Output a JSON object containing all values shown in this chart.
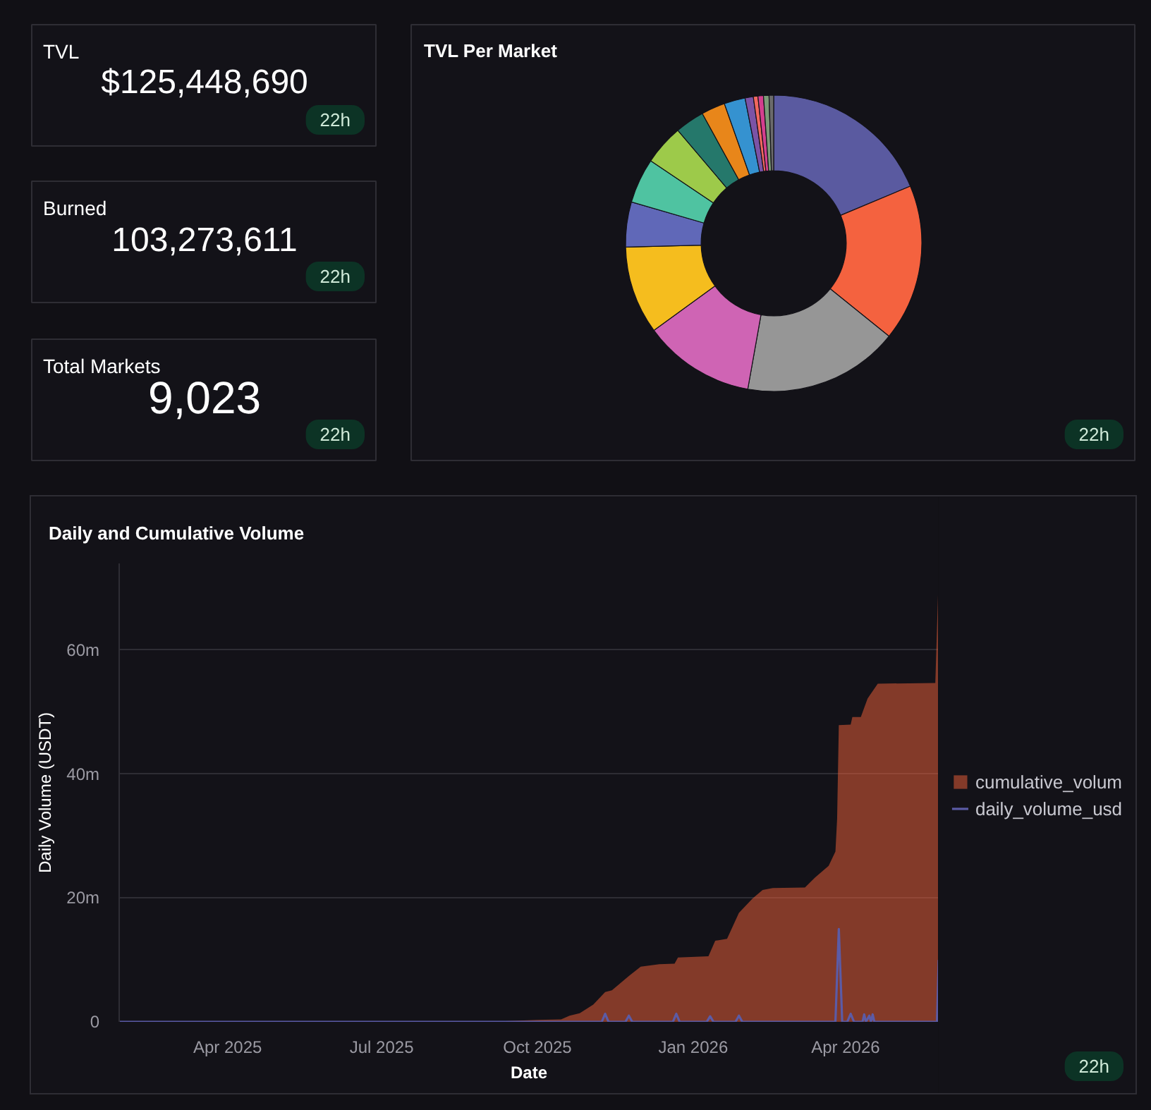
{
  "chart_data": [
    {
      "type": "other",
      "title": "TVL",
      "annotations": [
        "$125,448,690",
        "22h"
      ]
    },
    {
      "type": "other",
      "title": "Burned",
      "annotations": [
        "103,273,611",
        "22h"
      ]
    },
    {
      "type": "other",
      "title": "Total Markets",
      "annotations": [
        "9,023",
        "22h"
      ]
    },
    {
      "type": "donut",
      "title": "TVL Per Market",
      "annotations": [
        "22h"
      ],
      "categories": [
        null,
        null,
        null,
        null,
        null,
        null,
        null,
        null,
        null,
        null,
        null,
        null,
        null,
        null,
        null,
        null
      ],
      "values": [
        18.7,
        17.1,
        17.0,
        12.2,
        9.6,
        4.9,
        4.9,
        4.4,
        3.2,
        2.6,
        2.3,
        0.9,
        0.5,
        0.6,
        0.6,
        0.5
      ],
      "colors": [
        "#5a5aa0",
        "#f4623f",
        "#969696",
        "#cf64b4",
        "#f5bd1e",
        "#6068b8",
        "#4fc3a1",
        "#9dca4a",
        "#25786b",
        "#e8861a",
        "#3592d0",
        "#7b53a6",
        "#f2675f",
        "#d43f8e",
        "#7d9a78",
        "#6b6b6b"
      ]
    },
    {
      "type": "area",
      "title": "Daily and Cumulative Volume",
      "xlabel": "Date",
      "ylabel": "Daily Volume (USDT)",
      "annotations": [
        "22h"
      ],
      "xlim": [
        "2025-01-27",
        "2026-05-26"
      ],
      "xticks": [
        {
          "value": "2025-04-01",
          "label": "Apr 2025"
        },
        {
          "value": "2025-07-01",
          "label": "Jul 2025"
        },
        {
          "value": "2025-10-01",
          "label": "Oct 2025"
        },
        {
          "value": "2026-01-01",
          "label": "Jan 2026"
        },
        {
          "value": "2026-04-01",
          "label": "Apr 2026"
        }
      ],
      "ylim": [
        0,
        74000000
      ],
      "yticks": [
        0,
        {
          "value": 20000000,
          "label": "20m"
        },
        {
          "value": 40000000,
          "label": "40m"
        },
        {
          "value": 60000000,
          "label": "60m"
        }
      ],
      "grid": "y",
      "legend": "right",
      "series": [
        {
          "name": "cumulative_volum",
          "type": "area",
          "color": "#f4623a",
          "x": [
            "2025-01-27",
            "2025-09-01",
            "2025-10-01",
            "2025-10-15",
            "2025-10-20",
            "2025-10-26",
            "2025-11-03",
            "2025-11-10",
            "2025-11-14",
            "2025-11-24",
            "2025-12-01",
            "2025-12-12",
            "2025-12-21",
            "2025-12-23",
            "2026-01-10",
            "2026-01-14",
            "2026-01-21",
            "2026-01-28",
            "2026-02-05",
            "2026-02-11",
            "2026-02-17",
            "2026-03-08",
            "2026-03-14",
            "2026-03-22",
            "2026-03-26",
            "2026-03-27",
            "2026-03-28",
            "2026-04-04",
            "2026-04-05",
            "2026-04-10",
            "2026-04-14",
            "2026-04-20",
            "2026-05-24",
            "2026-05-26"
          ],
          "values": [
            0,
            0,
            300000,
            400000,
            1000000,
            1400000,
            2800000,
            4800000,
            5100000,
            7400000,
            8900000,
            9300000,
            9400000,
            10400000,
            10600000,
            13100000,
            13400000,
            17600000,
            19900000,
            21300000,
            21600000,
            21700000,
            23300000,
            25200000,
            27500000,
            32800000,
            47900000,
            48000000,
            49200000,
            49200000,
            52200000,
            54600000,
            54700000,
            72700000
          ]
        },
        {
          "name": "daily_volume_usd",
          "type": "line",
          "color": "#5b5ba6",
          "x": [
            "2025-01-27",
            "2025-11-08",
            "2025-11-10",
            "2025-11-12",
            "2025-11-22",
            "2025-11-24",
            "2025-11-26",
            "2025-12-20",
            "2025-12-22",
            "2025-12-24",
            "2026-01-09",
            "2026-01-11",
            "2026-01-13",
            "2026-01-26",
            "2026-01-28",
            "2026-01-30",
            "2026-03-26",
            "2026-03-28",
            "2026-03-30",
            "2026-04-02",
            "2026-04-04",
            "2026-04-06",
            "2026-04-11",
            "2026-04-12",
            "2026-04-13",
            "2026-04-15",
            "2026-04-16",
            "2026-04-17",
            "2026-04-18",
            "2026-05-25",
            "2026-05-26"
          ],
          "values": [
            0,
            0,
            1300000,
            0,
            0,
            1000000,
            0,
            0,
            1300000,
            0,
            0,
            900000,
            0,
            0,
            1000000,
            0,
            0,
            15000000,
            0,
            0,
            1300000,
            0,
            0,
            1200000,
            0,
            1000000,
            0,
            1200000,
            0,
            0,
            10000000
          ]
        }
      ]
    }
  ]
}
